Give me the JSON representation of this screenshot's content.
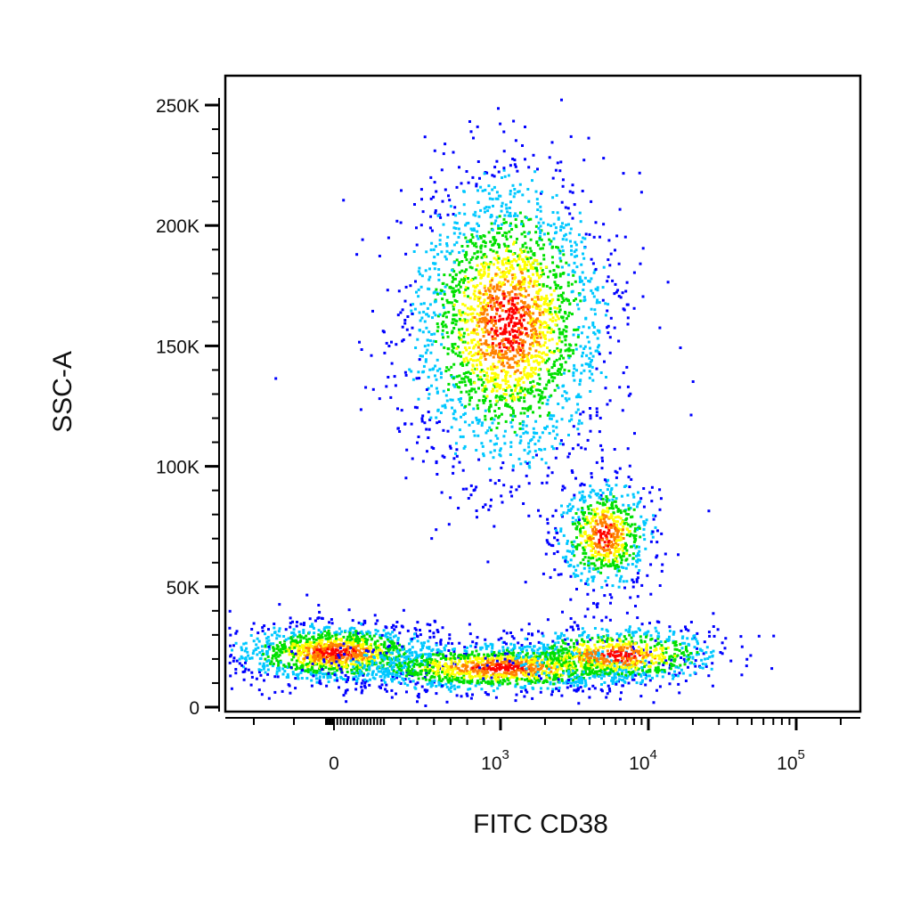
{
  "chart_data": {
    "type": "scatter",
    "title": "",
    "xlabel": "FITC CD38",
    "ylabel": "SSC-A",
    "x_scale": "biexponential",
    "ylim": [
      0,
      262144
    ],
    "y_ticks": [
      {
        "value": 0,
        "label": "0"
      },
      {
        "value": 50000,
        "label": "50K"
      },
      {
        "value": 100000,
        "label": "100K"
      },
      {
        "value": 150000,
        "label": "150K"
      },
      {
        "value": 200000,
        "label": "200K"
      },
      {
        "value": 250000,
        "label": "250K"
      }
    ],
    "x_ticks": [
      {
        "value": 0,
        "label": "0",
        "exp": ""
      },
      {
        "value": 1000,
        "label": "10",
        "exp": "3"
      },
      {
        "value": 10000,
        "label": "10",
        "exp": "4"
      },
      {
        "value": 100000,
        "label": "10",
        "exp": "5"
      }
    ],
    "color_scale": [
      "#0000ff",
      "#00c8ff",
      "#00e000",
      "#ffff00",
      "#ff8000",
      "#ff0000"
    ],
    "populations": [
      {
        "name": "",
        "center_x": 0,
        "center_y": 23000,
        "x_spread": 400,
        "y_spread": 6000,
        "n": 1400
      },
      {
        "name": "",
        "center_x": 1000,
        "center_y": 17000,
        "x_spread": 700,
        "y_spread": 5000,
        "n": 1500
      },
      {
        "name": "",
        "center_x": 6000,
        "center_y": 22000,
        "x_spread": 4000,
        "y_spread": 6000,
        "n": 800
      },
      {
        "name": "",
        "center_x": 1100,
        "center_y": 160000,
        "x_spread": 500,
        "y_spread": 30000,
        "n": 2600
      },
      {
        "name": "",
        "center_x": 5000,
        "center_y": 72000,
        "x_spread": 1800,
        "y_spread": 11000,
        "n": 700
      }
    ]
  }
}
